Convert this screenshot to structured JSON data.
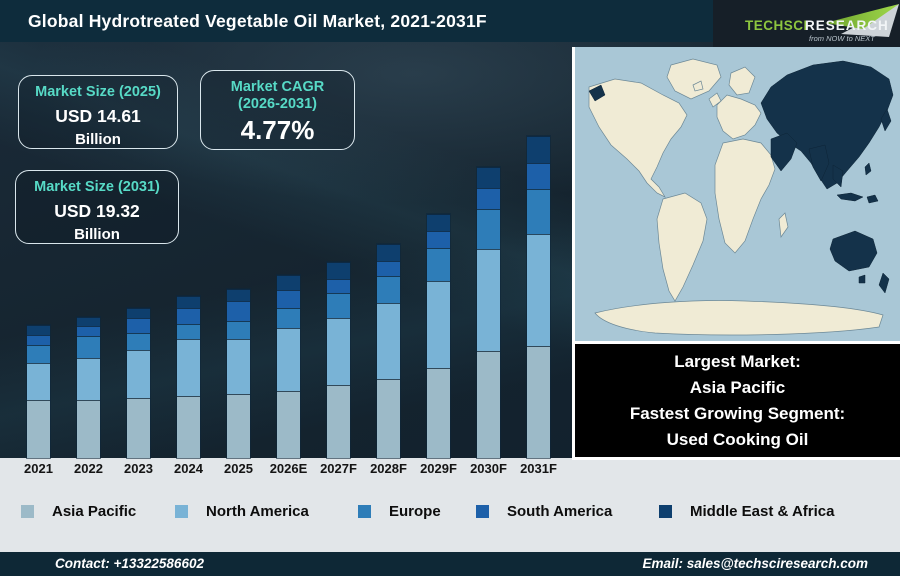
{
  "title": "Global Hydrotreated Vegetable Oil Market, 2021-2031F",
  "logo": {
    "brand_primary": "TechSci",
    "brand_secondary": "Research",
    "tagline": "from NOW to NEXT",
    "brand_green": "#8dc63f"
  },
  "stat_boxes": [
    {
      "label": "Market Size (2025)",
      "value": "USD 14.61",
      "unit": "Billion"
    },
    {
      "label": "Market CAGR (2026-2031)",
      "value": "4.77%"
    },
    {
      "label": "Market Size (2031)",
      "value": "USD 19.32",
      "unit": "Billion"
    }
  ],
  "chart_data": {
    "type": "bar",
    "stacked": true,
    "title": "Global Hydrotreated Vegetable Oil Market, 2021-2031F",
    "categories": [
      "2021",
      "2022",
      "2023",
      "2024",
      "2025",
      "2026E",
      "2027F",
      "2028F",
      "2029F",
      "2030F",
      "2031F"
    ],
    "series": [
      {
        "name": "Asia Pacific",
        "color": "#9cbac8",
        "values": [
          58,
          58,
          60,
          62,
          64,
          67,
          73,
          79,
          90,
          107,
          112
        ]
      },
      {
        "name": "North America",
        "color": "#79b3d6",
        "values": [
          37,
          42,
          48,
          57,
          55,
          63,
          67,
          76,
          87,
          102,
          112
        ]
      },
      {
        "name": "Europe",
        "color": "#2e7db8",
        "values": [
          18,
          22,
          17,
          15,
          18,
          20,
          25,
          27,
          33,
          40,
          45
        ]
      },
      {
        "name": "South America",
        "color": "#1d60a9",
        "values": [
          10,
          10,
          15,
          16,
          20,
          18,
          14,
          15,
          17,
          21,
          26
        ]
      },
      {
        "name": "Middle East & Africa",
        "color": "#0e3f6e",
        "values": [
          10,
          9,
          10,
          12,
          12,
          15,
          17,
          17,
          17,
          21,
          27
        ]
      }
    ],
    "values_unit": "relative bar height (no numeric axis shown on chart)",
    "known_points": {
      "2025_total": "USD 14.61 Billion",
      "2031_total": "USD 19.32 Billion",
      "cagr_2026_2031": "4.77%"
    },
    "legend_position": "bottom",
    "grid": false
  },
  "highlight_panel": {
    "lines": [
      "Largest Market:",
      "Asia Pacific",
      "Fastest Growing Segment:",
      "Used Cooking Oil"
    ]
  },
  "map": {
    "highlighted_region": "Asia Pacific",
    "ocean_color": "#a9c7d6",
    "land_color": "#f0ebd5",
    "highlight_color": "#14324a"
  },
  "footer": {
    "contact": "Contact: +13322586602",
    "email": "Email: sales@techsciresearch.com"
  }
}
